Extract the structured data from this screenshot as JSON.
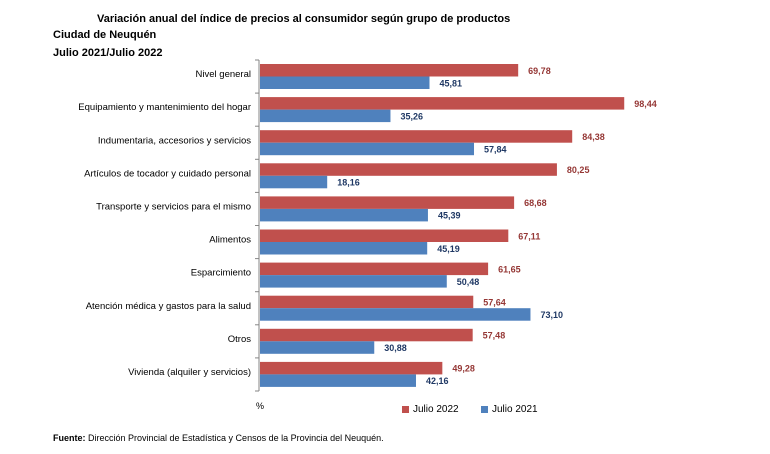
{
  "chart_data": {
    "type": "bar",
    "orientation": "horizontal",
    "title": "Variación anual del índice de precios al consumidor según grupo de productos",
    "subtitle": "Ciudad de Neuquén",
    "period": "Julio 2021/Julio 2022",
    "xlabel": "%",
    "ylabel": "",
    "xlim": [
      0,
      100
    ],
    "grid": false,
    "legend_position": "bottom",
    "categories": [
      "Nivel general",
      "Equipamiento y mantenimiento del hogar",
      "Indumentaria, accesorios y servicios",
      "Artículos de tocador y cuidado personal",
      "Transporte y servicios para el mismo",
      "Alimentos",
      "Esparcimiento",
      "Atención médica y gastos para la salud",
      "Otros",
      "Vivienda (alquiler y servicios)"
    ],
    "series": [
      {
        "name": "Julio 2022",
        "color": "#c0504d",
        "values": [
          69.78,
          98.44,
          84.38,
          80.25,
          68.68,
          67.11,
          61.65,
          57.64,
          57.48,
          49.28
        ],
        "labels": [
          "69,78",
          "98,44",
          "84,38",
          "80,25",
          "68,68",
          "67,11",
          "61,65",
          "57,64",
          "57,48",
          "49,28"
        ]
      },
      {
        "name": "Julio 2021",
        "color": "#4f81bd",
        "values": [
          45.81,
          35.26,
          57.84,
          18.16,
          45.39,
          45.19,
          50.48,
          73.1,
          30.88,
          42.16
        ],
        "labels": [
          "45,81",
          "35,26",
          "57,84",
          "18,16",
          "45,39",
          "45,19",
          "50,48",
          "73,10",
          "30,88",
          "42,16"
        ]
      }
    ]
  },
  "footer": {
    "label": "Fuente:",
    "text": " Dirección Provincial de Estadística y Censos de la Provincia del Neuquén."
  }
}
